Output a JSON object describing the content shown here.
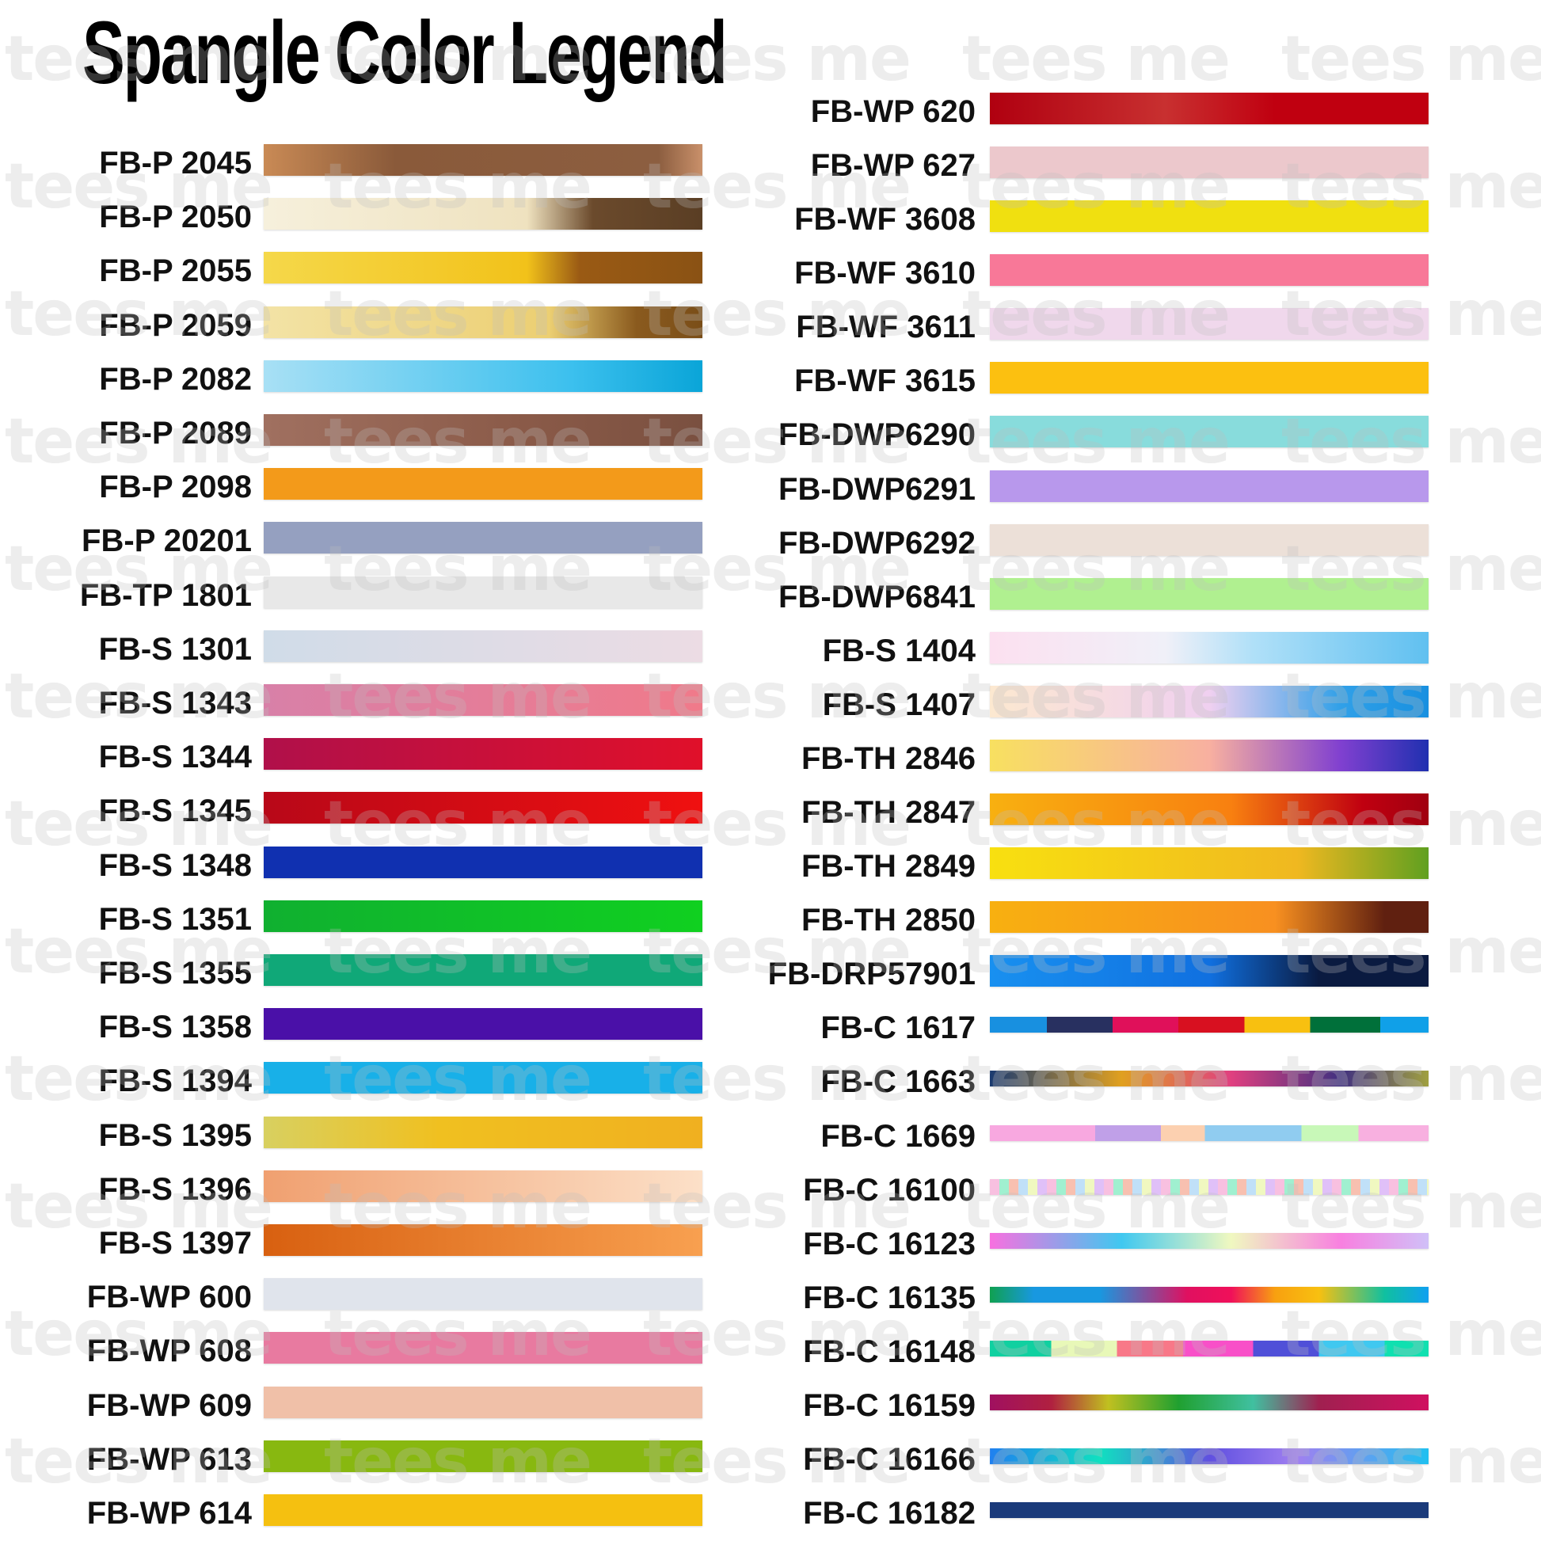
{
  "title": "Spangle Color Legend",
  "watermark": "tees me",
  "left_column": [
    {
      "code": "FB-P 2045",
      "fill": "linear-gradient(90deg,#c98a55,#8a5a3a 30%,#8c5e40 90%,#c9906a)"
    },
    {
      "code": "FB-P 2050",
      "fill": "linear-gradient(90deg,#f6f0dc,#efe2bf 60%,#6b4a2c 75%,#5a3e24)"
    },
    {
      "code": "FB-P 2055",
      "fill": "linear-gradient(90deg,#f5d84a,#f2c21a 60%,#9a5a14 72%,#8a5214)"
    },
    {
      "code": "FB-P 2059",
      "fill": "linear-gradient(90deg,#f3e3a6,#eccf72 65%,#8a5a1e 85%,#7a4e18)"
    },
    {
      "code": "FB-P 2082",
      "fill": "linear-gradient(90deg,#a8e0f5,#3cc0ee 70%,#0aa5d8)"
    },
    {
      "code": "FB-P 2089",
      "fill": "linear-gradient(90deg,#a07060,#8a5a48 60%,#7a5040)"
    },
    {
      "code": "FB-P 2098",
      "fill": "#f39a1a"
    },
    {
      "code": "FB-P 20201",
      "fill": "#95a0c0"
    },
    {
      "code": "FB-TP 1801",
      "fill": "#e8e8e8"
    },
    {
      "code": "FB-S 1301",
      "fill": "linear-gradient(90deg,#d0dce8,#ecdce4)"
    },
    {
      "code": "FB-S 1343",
      "fill": "linear-gradient(90deg,#d880a8,#f07a8a)"
    },
    {
      "code": "FB-S 1344",
      "fill": "linear-gradient(90deg,#b0104a,#e0102a)"
    },
    {
      "code": "FB-S 1345",
      "fill": "linear-gradient(90deg,#b80818,#f01010)"
    },
    {
      "code": "FB-S 1348",
      "fill": "#1030b0"
    },
    {
      "code": "FB-S 1351",
      "fill": "linear-gradient(90deg,#10b030,#10d020)"
    },
    {
      "code": "FB-S 1355",
      "fill": "#10a878"
    },
    {
      "code": "FB-S 1358",
      "fill": "#4a10a8"
    },
    {
      "code": "FB-S 1394",
      "fill": "#18b0e8"
    },
    {
      "code": "FB-S 1395",
      "fill": "linear-gradient(90deg,#d8d060,#f0c020 40%,#f0b020)"
    },
    {
      "code": "FB-S 1396",
      "fill": "linear-gradient(90deg,#f0a070,#fce0c8)"
    },
    {
      "code": "FB-S 1397",
      "fill": "linear-gradient(90deg,#d86010,#f8a050)"
    },
    {
      "code": "FB-WP 600",
      "fill": "#e0e4ec"
    },
    {
      "code": "FB-WP 608",
      "fill": "#e87aa0"
    },
    {
      "code": "FB-WP 609",
      "fill": "#f0c0a8"
    },
    {
      "code": "FB-WP 613",
      "fill": "#88b810"
    },
    {
      "code": "FB-WP 614",
      "fill": "#f5c010"
    }
  ],
  "right_column": [
    {
      "code": "FB-WP 620",
      "fill": "linear-gradient(90deg,#b00010,#c83030 40%,#c00010 65%,#c00010)"
    },
    {
      "code": "FB-WP 627",
      "fill": "#ecc8cc"
    },
    {
      "code": "FB-WF 3608",
      "fill": "#f0e010"
    },
    {
      "code": "FB-WF 3610",
      "fill": "#f87898"
    },
    {
      "code": "FB-WF 3611",
      "fill": "#f0d8ec"
    },
    {
      "code": "FB-WF 3615",
      "fill": "#fcc010"
    },
    {
      "code": "FB-DWP6290",
      "fill": "#88dcdc"
    },
    {
      "code": "FB-DWP6291",
      "fill": "#b898ec"
    },
    {
      "code": "FB-DWP6292",
      "fill": "#ece0d8"
    },
    {
      "code": "FB-DWP6841",
      "fill": "#b0f090"
    },
    {
      "code": "FB-S 1404",
      "fill": "linear-gradient(90deg,#fce0f0,#f0f0f8 40%,#b0e0f8 60%,#60c0f0)"
    },
    {
      "code": "FB-S 1407",
      "fill": "linear-gradient(90deg,#fce8d0,#f0d0f0 50%,#30a0e8 80%,#1890e0)"
    },
    {
      "code": "FB-TH 2846",
      "fill": "linear-gradient(90deg,#f8e060,#f8b0a0 50%,#8040d0 80%,#2030b0)"
    },
    {
      "code": "FB-TH 2847",
      "fill": "linear-gradient(90deg,#f8b010,#f88010 55%,#c00010 85%,#a00010)"
    },
    {
      "code": "FB-TH 2849",
      "fill": "linear-gradient(90deg,#f8e010,#f0b820 70%,#60a020)"
    },
    {
      "code": "FB-TH 2850",
      "fill": "linear-gradient(90deg,#f8b010,#f89020 65%,#602010 90%)"
    },
    {
      "code": "FB-DRP57901",
      "fill": "linear-gradient(90deg,#1890f0,#1070e0 50%,#0a1a40 75%)"
    },
    {
      "code": "FB-C 1617",
      "fill": "linear-gradient(90deg,#1890e0 0 13%,#283060 13% 28%,#e0105a 28% 43%,#d81020 43% 58%,#f8c010 58% 73%,#00703a 73% 89%,#10a0e8 89%)"
    },
    {
      "code": "FB-C 1663",
      "fill": "linear-gradient(90deg,#1a3a70,#e0a020 30%,#e04080 55%,#403080 80%,#a0a040)"
    },
    {
      "code": "FB-C 1669",
      "fill": "linear-gradient(90deg,#f8a8e0 0 24%,#c0a0e8 24% 39%,#fcd0b0 39% 49%,#90ccf0 49% 71%,#c8f8b8 71% 84%,#f8b0e0 84%)"
    },
    {
      "code": "FB-C 16100",
      "fill": "repeating-linear-gradient(90deg,#f8c0e0 0 12px,#a0f0d0 12px 24px,#f8c0b0 24px 36px,#c0e0f8 36px 48px,#f0f8c0 48px 60px,#e0c0f8 60px 72px)"
    },
    {
      "code": "FB-C 16123",
      "fill": "linear-gradient(90deg,#f870e0,#40c8f0 30%,#f0f8c0 55%,#f880e0 80%,#d0c0f8)"
    },
    {
      "code": "FB-C 16135",
      "fill": "linear-gradient(90deg,#10a050,#1898e0 10%,#1898e0 25%,#e01060 45%,#f0105a 55%,#f8a010 65%,#f8c010 75%,#10c0a0 90%,#10a0f0)"
    },
    {
      "code": "FB-C 16148",
      "fill": "linear-gradient(90deg,#10d0a0 0 14%,#e8f8b8 14% 29%,#f87888 29% 44%,#f850c8 44% 60%,#5050d8 60% 75%,#40c8f0 75% 90%,#10e0b0 90%)"
    },
    {
      "code": "FB-C 16159",
      "fill": "linear-gradient(90deg,#a01060,#b02040 14%,#c0c020 27%,#20a030 43%,#40c0a0 60%,#a02050 75%,#d01060)"
    },
    {
      "code": "FB-C 16166",
      "fill": "linear-gradient(90deg,#2080f0,#10e0c0 25%,#6050e0 50%,#a080f0 70%,#20c0f0)"
    },
    {
      "code": "FB-C 16182",
      "fill": "#1a3a7a"
    }
  ]
}
